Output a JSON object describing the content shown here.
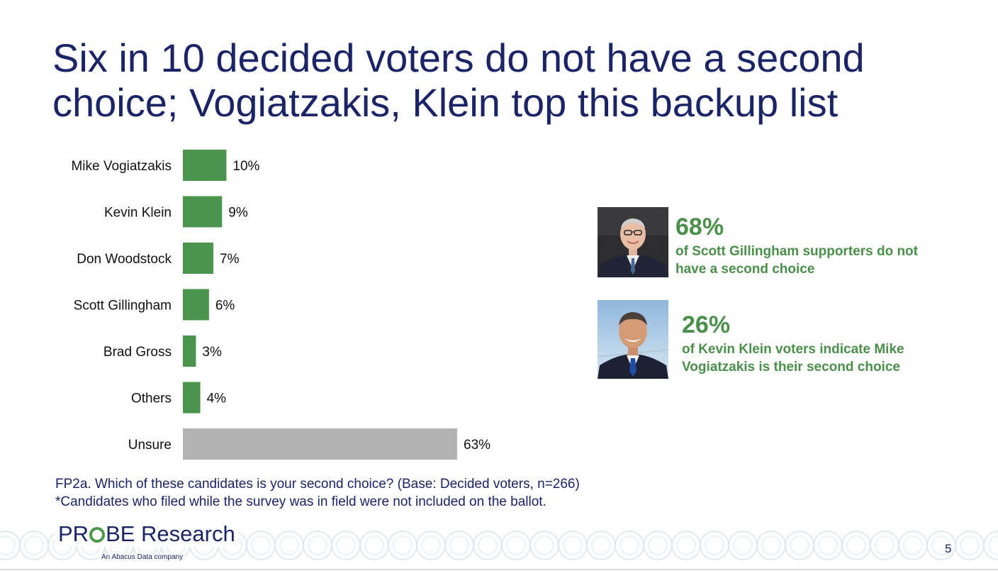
{
  "title": {
    "line1": "Six in 10 decided voters do not have a second",
    "line2": "choice; Vogiatzakis, Klein top this backup list"
  },
  "chart_data": {
    "type": "bar",
    "orientation": "horizontal",
    "categories": [
      "Mike Vogiatzakis",
      "Kevin Klein",
      "Don Woodstock",
      "Scott Gillingham",
      "Brad Gross",
      "Others",
      "Unsure"
    ],
    "values": [
      10,
      9,
      7,
      6,
      3,
      4,
      63
    ],
    "data_labels": [
      "10%",
      "9%",
      "7%",
      "6%",
      "3%",
      "4%",
      "63%"
    ],
    "bar_colors": [
      "#4a944e",
      "#4a944e",
      "#4a944e",
      "#4a944e",
      "#4a944e",
      "#4a944e",
      "#b3b3b3"
    ],
    "xlim": [
      0,
      63
    ],
    "grid": false,
    "legend": "none"
  },
  "callouts": [
    {
      "stat": "68%",
      "text": "of Scott Gillingham supporters do not have a second choice",
      "photo_icon": "scott-gillingham-photo"
    },
    {
      "stat": "26%",
      "text": "of Kevin Klein voters indicate Mike Vogiatzakis is their second choice",
      "photo_icon": "kevin-klein-photo"
    }
  ],
  "footnotes": {
    "question": "FP2a. Which of these candidates is your second choice? (Base: Decided voters, n=266)",
    "note": "*Candidates who filed while the survey was in field were not included on the ballot."
  },
  "brand": {
    "pre": "PR",
    "post": "BE Research",
    "tagline": "An Abacus Data company"
  },
  "page_number": "5",
  "colors": {
    "title": "#1a2466",
    "accent_green": "#4a8f4a",
    "bar_green": "#4a944e",
    "bar_gray": "#b3b3b3"
  }
}
